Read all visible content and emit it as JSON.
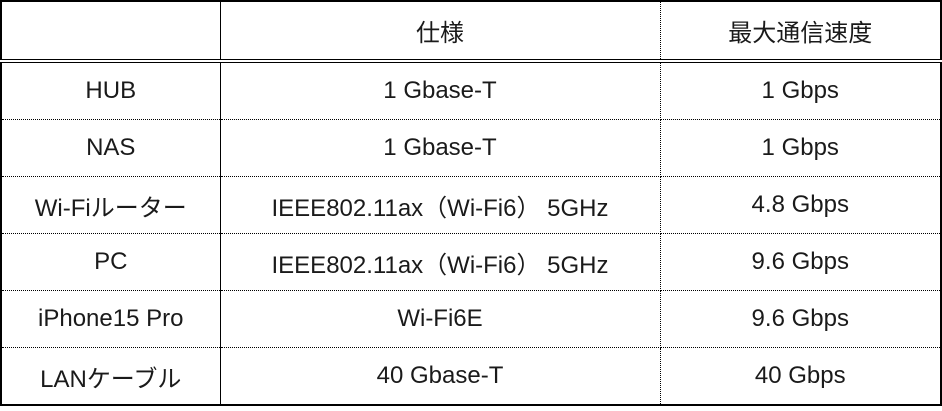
{
  "chart_data": {
    "type": "table",
    "columns": [
      "",
      "仕様",
      "最大通信速度"
    ],
    "rows": [
      [
        "HUB",
        "1 Gbase-T",
        "1 Gbps"
      ],
      [
        "NAS",
        "1 Gbase-T",
        "1 Gbps"
      ],
      [
        "Wi-Fiルーター",
        "IEEE802.11ax（Wi-Fi6） 5GHz",
        "4.8 Gbps"
      ],
      [
        "PC",
        "IEEE802.11ax（Wi-Fi6） 5GHz",
        "9.6 Gbps"
      ],
      [
        "iPhone15 Pro",
        "Wi-Fi6E",
        "9.6 Gbps"
      ],
      [
        "LANケーブル",
        "40 Gbase-T",
        "40 Gbps"
      ]
    ]
  },
  "colors": {
    "border": "#000000",
    "text": "#1a1a1a",
    "background": "#ffffff"
  }
}
